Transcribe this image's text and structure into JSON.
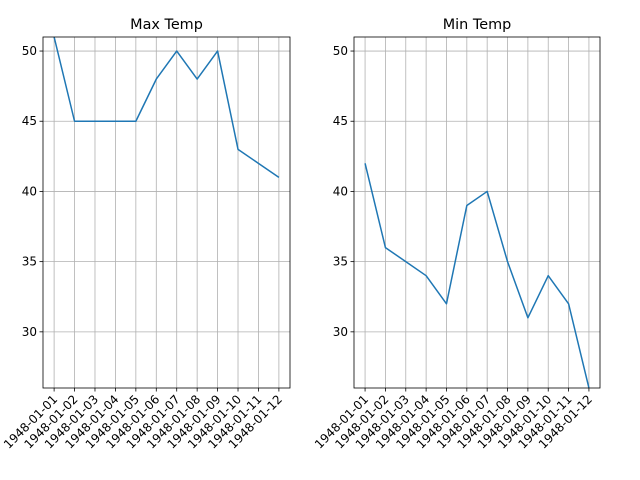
{
  "chart_data": [
    {
      "type": "line",
      "title": "Max Temp",
      "xlabel": "",
      "ylabel": "",
      "x": [
        "1948-01-01",
        "1948-01-02",
        "1948-01-03",
        "1948-01-04",
        "1948-01-05",
        "1948-01-06",
        "1948-01-07",
        "1948-01-08",
        "1948-01-09",
        "1948-01-10",
        "1948-01-11",
        "1948-01-12"
      ],
      "values": [
        51,
        45,
        45,
        45,
        45,
        48,
        50,
        48,
        50,
        43,
        42,
        41
      ],
      "ylim": [
        26,
        51
      ],
      "yticks": [
        30,
        35,
        40,
        45,
        50
      ],
      "grid": true,
      "line_color": "#1f77b4"
    },
    {
      "type": "line",
      "title": "Min Temp",
      "xlabel": "",
      "ylabel": "",
      "x": [
        "1948-01-01",
        "1948-01-02",
        "1948-01-03",
        "1948-01-04",
        "1948-01-05",
        "1948-01-06",
        "1948-01-07",
        "1948-01-08",
        "1948-01-09",
        "1948-01-10",
        "1948-01-11",
        "1948-01-12"
      ],
      "values": [
        42,
        36,
        35,
        34,
        32,
        39,
        40,
        35,
        31,
        34,
        32,
        26
      ],
      "ylim": [
        26,
        51
      ],
      "yticks": [
        30,
        35,
        40,
        45,
        50
      ],
      "grid": true,
      "line_color": "#1f77b4"
    }
  ]
}
